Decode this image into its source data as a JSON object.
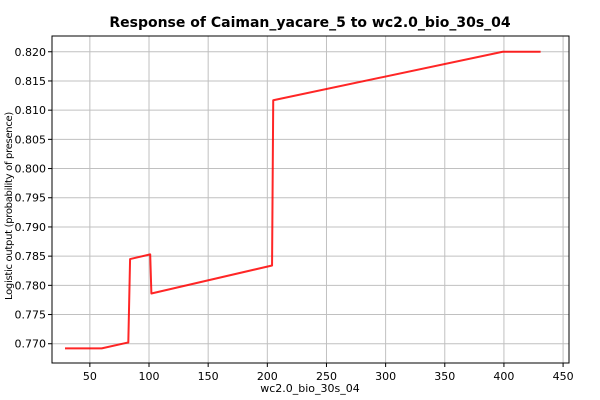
{
  "chart_data": {
    "type": "line",
    "title": "Response of Caiman_yacare_5 to wc2.0_bio_30s_04",
    "xlabel": "wc2.0_bio_30s_04",
    "ylabel": "Logistic output (probability of presence)",
    "xlim": [
      18,
      455
    ],
    "ylim": [
      0.7667,
      0.8227
    ],
    "xticks": [
      50,
      100,
      150,
      200,
      250,
      300,
      350,
      400,
      450
    ],
    "yticks": [
      0.77,
      0.775,
      0.78,
      0.785,
      0.79,
      0.795,
      0.8,
      0.805,
      0.81,
      0.815,
      0.82
    ],
    "xtick_labels": [
      "50",
      "100",
      "150",
      "200",
      "250",
      "300",
      "350",
      "400",
      "450"
    ],
    "ytick_labels": [
      "0.770",
      "0.775",
      "0.780",
      "0.785",
      "0.790",
      "0.795",
      "0.800",
      "0.805",
      "0.810",
      "0.815",
      "0.820"
    ],
    "grid": true,
    "line_color": "#ff0000",
    "x": [
      29,
      60,
      82,
      82.5,
      84,
      101,
      102,
      204,
      205,
      399,
      431
    ],
    "y": [
      0.7692,
      0.7692,
      0.7702,
      0.7702,
      0.7845,
      0.7853,
      0.7786,
      0.7834,
      0.8117,
      0.82,
      0.82
    ]
  }
}
